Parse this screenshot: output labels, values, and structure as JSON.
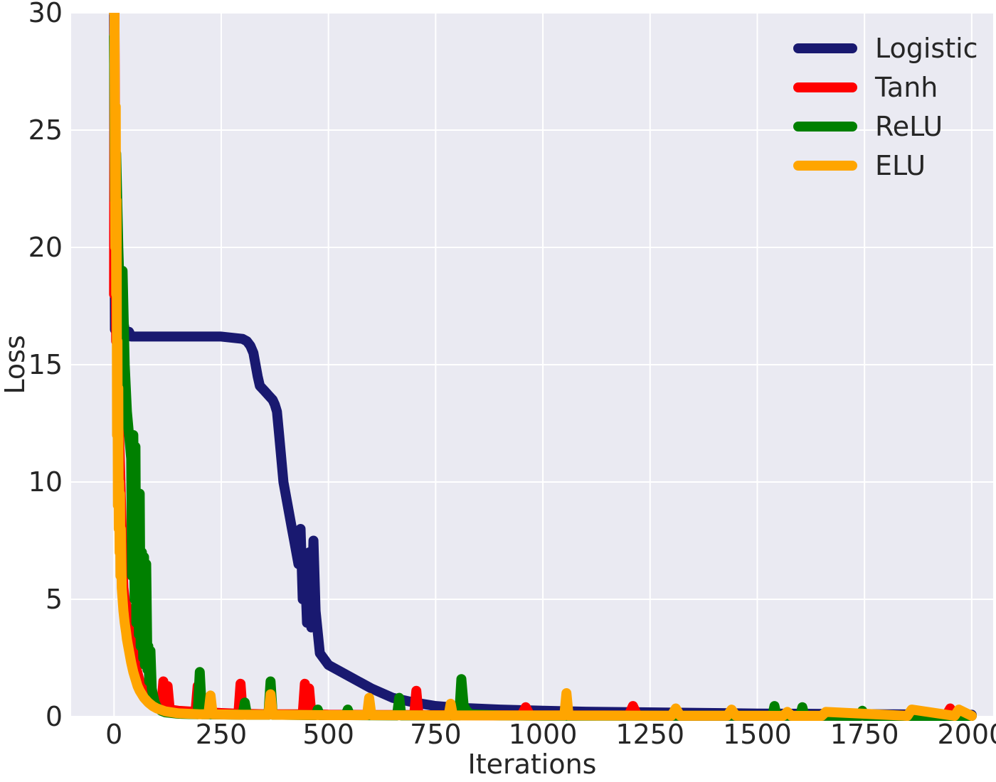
{
  "chart_data": {
    "type": "line",
    "title": "",
    "xlabel": "Iterations",
    "ylabel": "Loss",
    "xlim": [
      -100,
      2050
    ],
    "ylim": [
      0,
      30
    ],
    "xticks": [
      0,
      250,
      500,
      750,
      1000,
      1250,
      1500,
      1750,
      2000
    ],
    "yticks": [
      0,
      5,
      10,
      15,
      20,
      25,
      30
    ],
    "grid": true,
    "legend_position": "top-right",
    "background_color": "#eaeaf2",
    "series": [
      {
        "name": "Logistic",
        "color": "#191970",
        "x": [
          0,
          2,
          5,
          10,
          15,
          20,
          25,
          30,
          35,
          40,
          60,
          100,
          150,
          200,
          250,
          300,
          310,
          318,
          325,
          330,
          335,
          340,
          350,
          360,
          370,
          375,
          380,
          385,
          390,
          395,
          400,
          405,
          410,
          415,
          420,
          425,
          430,
          435,
          440,
          445,
          450,
          455,
          460,
          465,
          470,
          480,
          500,
          550,
          600,
          650,
          700,
          750,
          800,
          900,
          1000,
          1100,
          1200,
          1300,
          1400,
          1500,
          1600,
          1700,
          1800,
          1900,
          2000
        ],
        "y": [
          30,
          16.5,
          16.8,
          16.4,
          16.6,
          17.0,
          16.5,
          16.3,
          16.4,
          16.2,
          16.2,
          16.2,
          16.2,
          16.2,
          16.2,
          16.1,
          16.0,
          15.8,
          15.5,
          15.0,
          14.5,
          14.1,
          13.9,
          13.7,
          13.5,
          13.3,
          13.0,
          12.0,
          11.0,
          10.0,
          9.5,
          9.0,
          8.5,
          8.0,
          7.5,
          7.0,
          6.5,
          8.0,
          5.0,
          6.5,
          4.0,
          7.0,
          3.8,
          7.5,
          4.5,
          2.7,
          2.2,
          1.7,
          1.2,
          0.8,
          0.6,
          0.45,
          0.38,
          0.3,
          0.25,
          0.21,
          0.19,
          0.17,
          0.15,
          0.13,
          0.12,
          0.11,
          0.1,
          0.09,
          0.08
        ]
      },
      {
        "name": "Tanh",
        "color": "#ff0000",
        "x": [
          0,
          1,
          3,
          5,
          7,
          10,
          12,
          15,
          18,
          20,
          22,
          25,
          28,
          30,
          35,
          40,
          45,
          50,
          60,
          70,
          80,
          90,
          100,
          110,
          115,
          120,
          125,
          130,
          150,
          190,
          195,
          200,
          250,
          290,
          295,
          300,
          350,
          440,
          445,
          450,
          455,
          460,
          500,
          600,
          700,
          705,
          710,
          800,
          950,
          960,
          970,
          1100,
          1200,
          1210,
          1220,
          1300,
          1500,
          1700,
          1900,
          1940,
          1950,
          1960,
          2000
        ],
        "y": [
          18,
          30,
          22,
          16,
          20,
          14,
          12,
          10,
          8,
          6.5,
          5.5,
          5.0,
          4.8,
          4.6,
          4.2,
          3.5,
          2.8,
          2.2,
          1.5,
          1.1,
          0.8,
          0.6,
          0.45,
          0.35,
          1.5,
          0.4,
          1.3,
          0.3,
          0.25,
          0.2,
          1.3,
          0.2,
          0.15,
          0.12,
          1.4,
          0.12,
          0.1,
          0.1,
          1.4,
          0.1,
          1.2,
          0.1,
          0.08,
          0.07,
          0.07,
          1.1,
          0.06,
          0.06,
          0.05,
          0.4,
          0.05,
          0.05,
          0.05,
          0.45,
          0.05,
          0.04,
          0.04,
          0.04,
          0.04,
          0.04,
          0.35,
          0.04,
          0.03
        ]
      },
      {
        "name": "ReLU",
        "color": "#008000",
        "x": [
          0,
          2,
          5,
          10,
          15,
          20,
          25,
          30,
          35,
          40,
          42,
          45,
          48,
          50,
          52,
          55,
          58,
          60,
          62,
          65,
          68,
          70,
          72,
          75,
          78,
          80,
          82,
          85,
          88,
          90,
          95,
          100,
          110,
          120,
          150,
          195,
          200,
          205,
          210,
          300,
          305,
          310,
          360,
          365,
          370,
          470,
          475,
          480,
          540,
          545,
          550,
          660,
          665,
          670,
          805,
          810,
          815,
          820,
          830,
          900,
          1000,
          1100,
          1200,
          1300,
          1400,
          1535,
          1540,
          1545,
          1600,
          1605,
          1610,
          1740,
          1745,
          1750,
          2000
        ],
        "y": [
          29,
          22,
          24,
          20,
          17,
          19,
          15,
          13,
          12,
          11,
          6,
          12,
          5,
          11.5,
          4,
          9.5,
          3.5,
          9.5,
          3,
          7,
          2.5,
          6.8,
          2.2,
          6.5,
          2.0,
          3.0,
          1.5,
          2.8,
          1.2,
          1.0,
          0.6,
          0.4,
          0.25,
          0.18,
          0.12,
          0.1,
          1.9,
          0.1,
          0.1,
          0.08,
          0.6,
          0.08,
          0.08,
          1.5,
          0.08,
          0.06,
          0.3,
          0.06,
          0.06,
          0.3,
          0.06,
          0.05,
          0.8,
          0.05,
          0.05,
          1.6,
          0.5,
          0.3,
          0.1,
          0.05,
          0.04,
          0.04,
          0.04,
          0.04,
          0.04,
          0.04,
          0.45,
          0.04,
          0.04,
          0.4,
          0.04,
          0.03,
          0.25,
          0.03,
          0.03
        ]
      },
      {
        "name": "ELU",
        "color": "#ffa500",
        "x": [
          0,
          1,
          2,
          3,
          4,
          5,
          6,
          7,
          8,
          9,
          10,
          11,
          12,
          13,
          14,
          15,
          16,
          18,
          20,
          22,
          25,
          28,
          30,
          35,
          40,
          45,
          50,
          55,
          60,
          70,
          80,
          90,
          100,
          120,
          150,
          200,
          220,
          225,
          230,
          300,
          360,
          365,
          370,
          500,
          590,
          595,
          600,
          780,
          785,
          790,
          1000,
          1050,
          1055,
          1060,
          1300,
          1310,
          1320,
          1430,
          1440,
          1450,
          1560,
          1570,
          1580,
          1650,
          1660,
          1850,
          1860,
          1960,
          1970,
          2000
        ],
        "y": [
          30,
          30,
          24,
          20,
          26,
          18,
          22,
          12,
          16,
          9,
          14,
          8,
          10,
          7,
          9.5,
          6,
          8,
          5.5,
          5,
          4.5,
          4,
          3.6,
          3.3,
          2.8,
          2.3,
          1.9,
          1.6,
          1.3,
          1.1,
          0.8,
          0.6,
          0.45,
          0.35,
          0.22,
          0.14,
          0.1,
          0.1,
          0.9,
          0.1,
          0.08,
          0.08,
          0.95,
          0.08,
          0.06,
          0.06,
          0.8,
          0.06,
          0.05,
          0.55,
          0.05,
          0.05,
          0.05,
          1.0,
          0.05,
          0.04,
          0.35,
          0.04,
          0.04,
          0.3,
          0.04,
          0.03,
          0.2,
          0.03,
          0.03,
          0.2,
          0.03,
          0.3,
          0.03,
          0.3,
          0.03
        ]
      }
    ]
  }
}
